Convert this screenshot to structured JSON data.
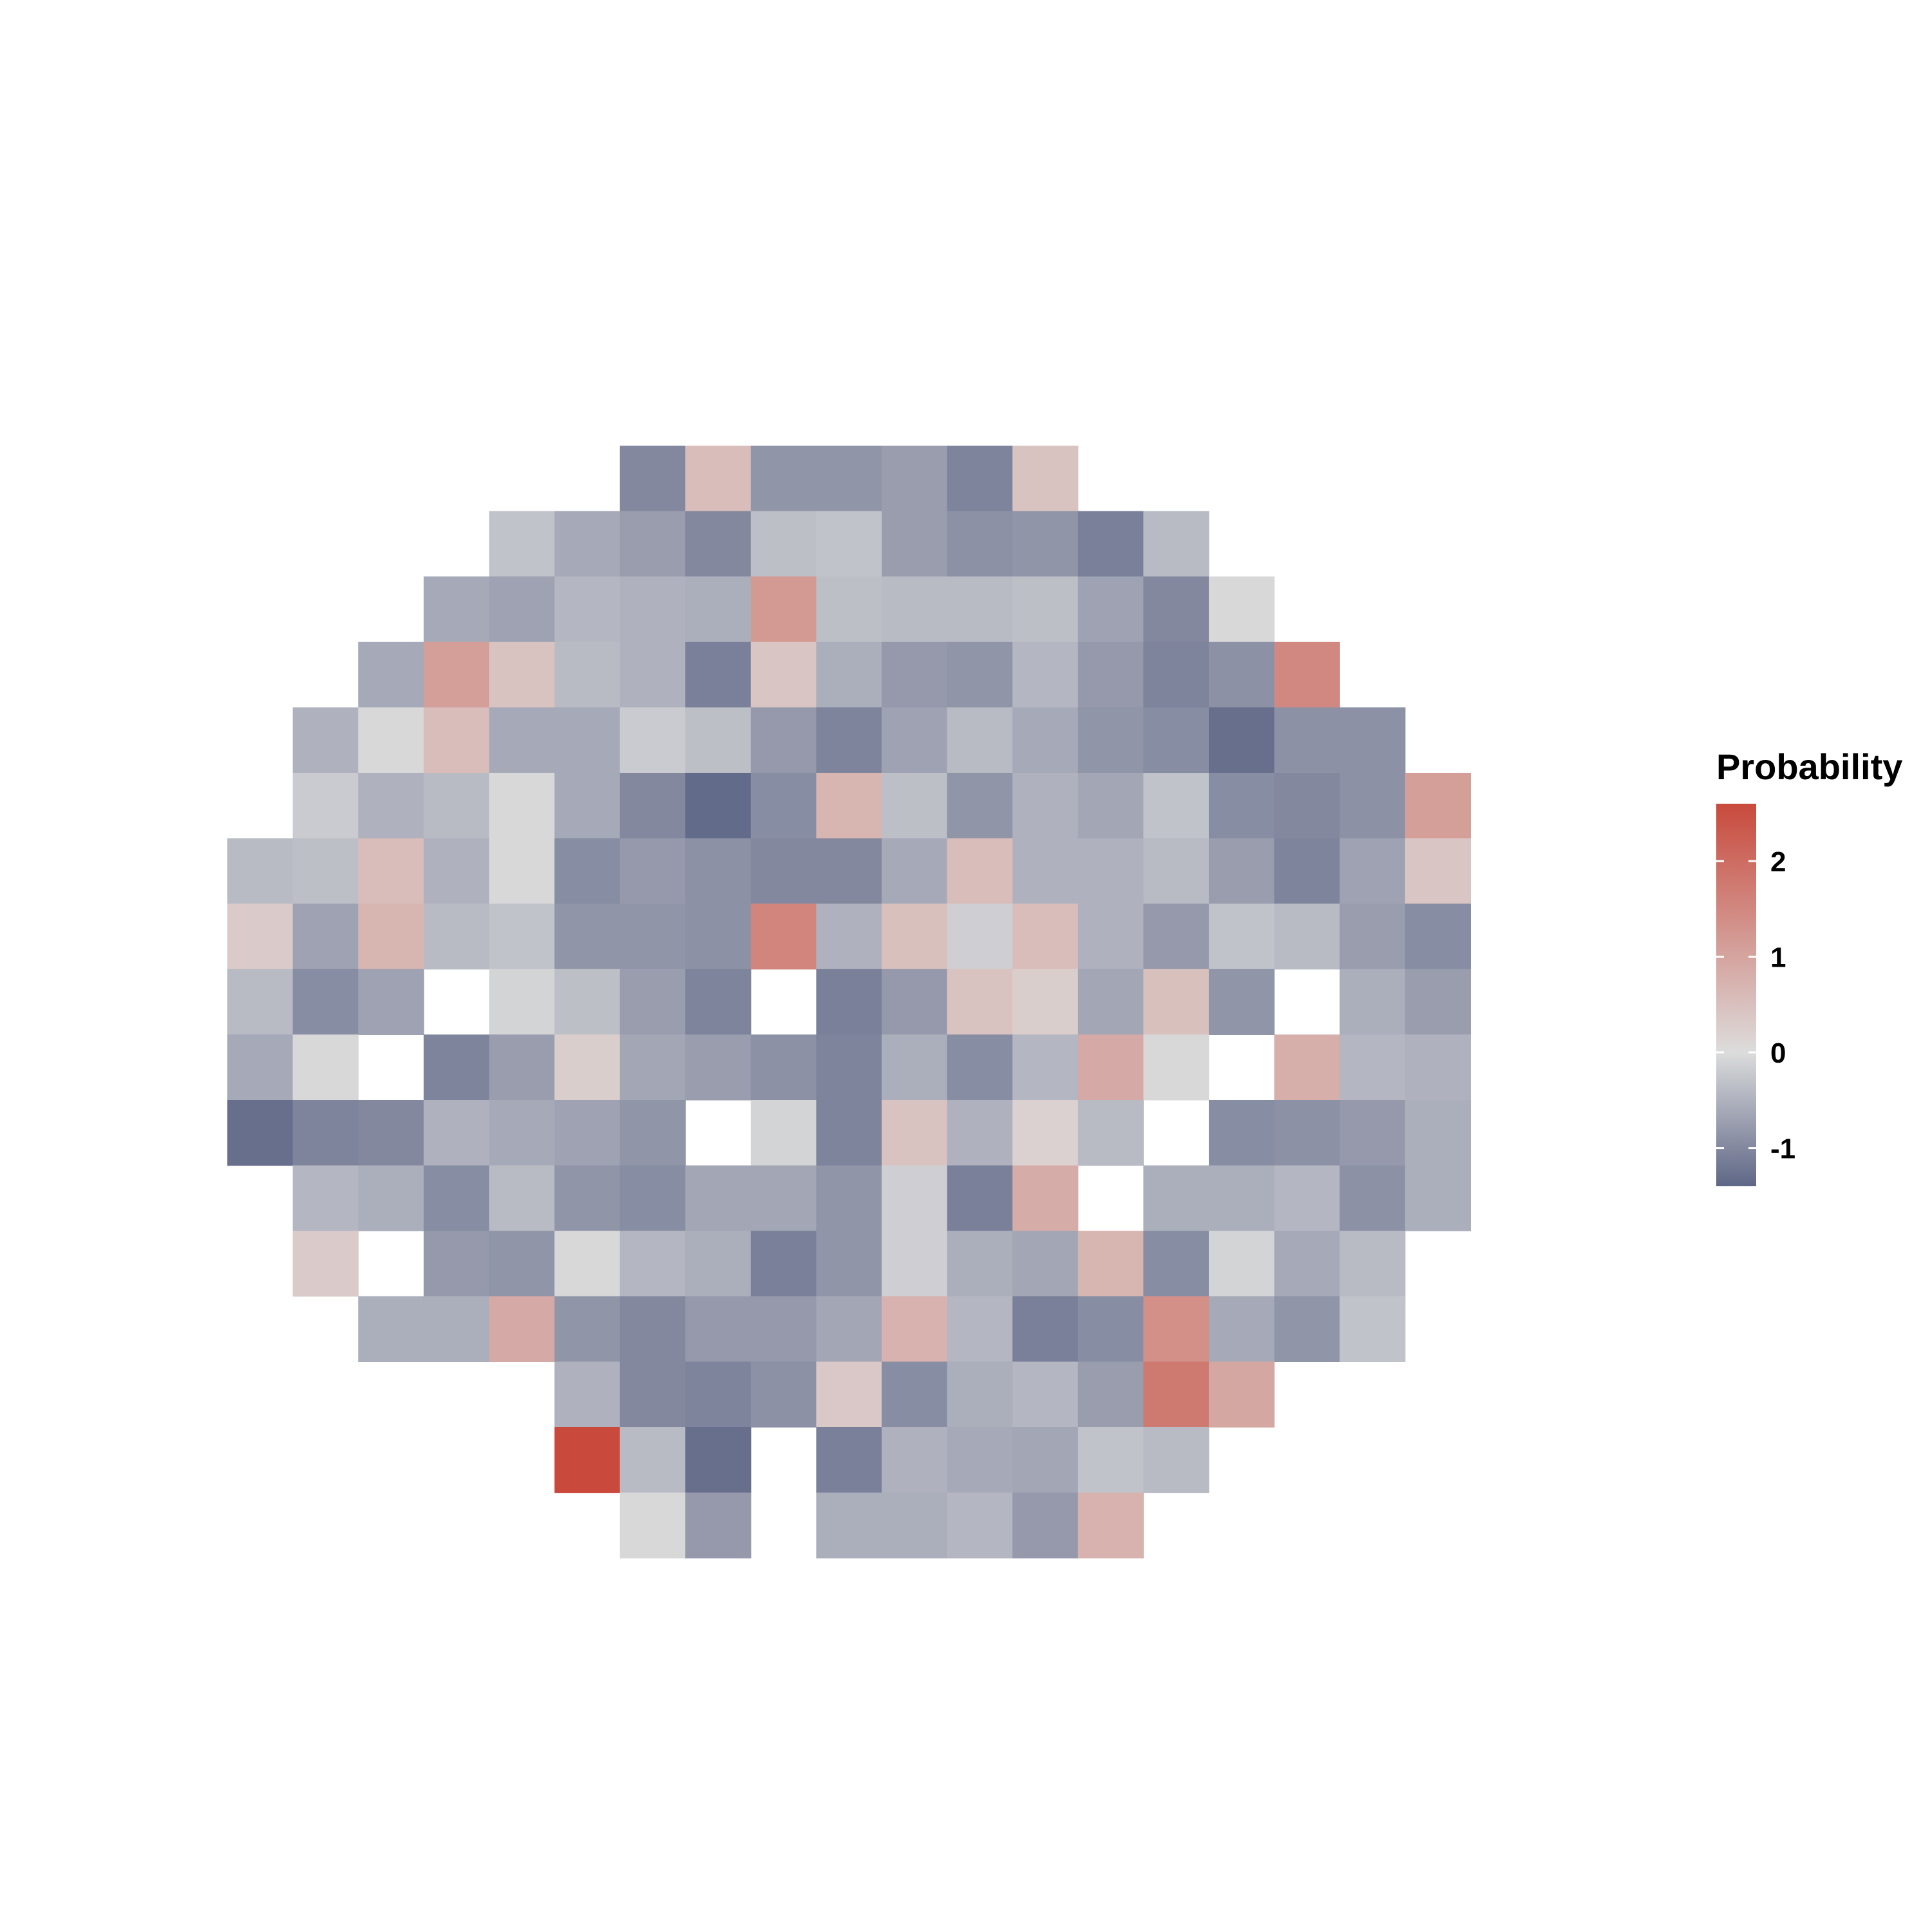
{
  "chart_data": {
    "type": "heatmap",
    "title": "",
    "xlabel": "",
    "ylabel": "",
    "grid": false,
    "axes_visible": false,
    "ncols": 19,
    "nrows": 17,
    "missing_value": null,
    "color_scale": {
      "low": "#5f6787",
      "mid": "#dcdcdc",
      "high": "#c94a3d",
      "mid_value": 0,
      "range": [
        -1.4,
        2.6
      ]
    },
    "legend": {
      "title": "Probability",
      "position": "right",
      "ticks": [
        2,
        1,
        0,
        -1
      ],
      "tick_labels": [
        "2",
        "1",
        "0",
        "-1"
      ]
    },
    "rows": [
      [
        null,
        null,
        null,
        null,
        null,
        null,
        -1.0,
        0.55,
        -0.85,
        -0.85,
        -0.75,
        -1.05,
        0.45,
        null,
        null,
        null,
        null,
        null,
        null
      ],
      [
        null,
        null,
        null,
        null,
        -0.3,
        -0.6,
        -0.75,
        -1.0,
        -0.35,
        -0.3,
        -0.75,
        -0.9,
        -0.85,
        -1.1,
        -0.4,
        null,
        null,
        null,
        null
      ],
      [
        null,
        null,
        null,
        -0.6,
        -0.7,
        -0.45,
        -0.5,
        -0.55,
        1.2,
        -0.35,
        -0.4,
        -0.4,
        -0.35,
        -0.7,
        -1.0,
        -0.05,
        null,
        null,
        null
      ],
      [
        null,
        null,
        -0.6,
        1.1,
        0.45,
        -0.4,
        -0.5,
        -1.1,
        0.4,
        -0.55,
        -0.8,
        -0.85,
        -0.45,
        -0.8,
        -1.05,
        -0.9,
        1.5,
        null,
        null
      ],
      [
        null,
        -0.5,
        -0.05,
        0.55,
        -0.6,
        -0.6,
        -0.2,
        -0.35,
        -0.8,
        -1.05,
        -0.7,
        -0.4,
        -0.6,
        -0.85,
        -0.95,
        -1.3,
        -0.9,
        -0.9,
        null
      ],
      [
        null,
        -0.2,
        -0.5,
        -0.4,
        -0.05,
        -0.6,
        -1.0,
        -1.35,
        -0.95,
        0.7,
        -0.35,
        -0.85,
        -0.5,
        -0.65,
        -0.3,
        -0.95,
        -1.0,
        -0.9,
        1.1
      ],
      [
        -0.4,
        -0.35,
        0.55,
        -0.5,
        -0.05,
        -0.95,
        -0.8,
        -0.9,
        -1.0,
        -1.0,
        -0.6,
        0.55,
        -0.5,
        -0.5,
        -0.4,
        -0.75,
        -1.05,
        -0.7,
        0.4
      ],
      [
        0.3,
        -0.7,
        0.7,
        -0.4,
        -0.3,
        -0.85,
        -0.85,
        -0.9,
        1.55,
        -0.5,
        0.5,
        -0.15,
        0.55,
        -0.5,
        -0.8,
        -0.3,
        -0.4,
        -0.75,
        -0.95
      ],
      [
        -0.4,
        -0.95,
        -0.7,
        null,
        -0.1,
        -0.35,
        -0.75,
        -1.05,
        null,
        -1.1,
        -0.8,
        0.45,
        0.25,
        -0.65,
        0.5,
        -0.85,
        null,
        -0.55,
        -0.75
      ],
      [
        -0.6,
        -0.05,
        null,
        -1.05,
        -0.75,
        0.25,
        -0.65,
        -0.75,
        -0.9,
        -1.05,
        -0.55,
        -0.95,
        -0.45,
        0.9,
        -0.05,
        null,
        0.8,
        -0.45,
        -0.5
      ],
      [
        -1.3,
        -1.05,
        -1.0,
        -0.5,
        -0.6,
        -0.7,
        -0.85,
        null,
        -0.1,
        -1.05,
        0.45,
        -0.5,
        0.2,
        -0.4,
        null,
        -0.95,
        -0.9,
        -0.8,
        -0.55
      ],
      [
        null,
        -0.45,
        -0.55,
        -0.95,
        -0.4,
        -0.85,
        -0.95,
        -0.65,
        -0.65,
        -0.85,
        -0.15,
        -1.1,
        0.85,
        null,
        -0.55,
        -0.55,
        -0.45,
        -0.9,
        -0.55
      ],
      [
        null,
        0.3,
        null,
        -0.8,
        -0.85,
        -0.05,
        -0.45,
        -0.55,
        -1.1,
        -0.85,
        -0.15,
        -0.55,
        -0.65,
        0.7,
        -0.95,
        -0.1,
        -0.6,
        -0.4,
        null
      ],
      [
        null,
        null,
        -0.55,
        -0.55,
        0.9,
        -0.85,
        -1.0,
        -0.8,
        -0.8,
        -0.65,
        0.75,
        -0.45,
        -1.1,
        -0.95,
        1.35,
        -0.6,
        -0.85,
        -0.3,
        null
      ],
      [
        null,
        null,
        null,
        null,
        null,
        -0.5,
        -1.0,
        -1.05,
        -0.9,
        0.35,
        -0.95,
        -0.55,
        -0.45,
        -0.75,
        1.75,
        0.95,
        null,
        null,
        null
      ],
      [
        null,
        null,
        null,
        null,
        null,
        2.6,
        -0.4,
        -1.3,
        null,
        -1.1,
        -0.5,
        -0.6,
        -0.65,
        -0.3,
        -0.4,
        null,
        null,
        null,
        null
      ],
      [
        null,
        null,
        null,
        null,
        null,
        null,
        -0.05,
        -0.8,
        null,
        -0.55,
        -0.55,
        -0.45,
        -0.8,
        0.75,
        null,
        null,
        null,
        null,
        null
      ]
    ]
  }
}
